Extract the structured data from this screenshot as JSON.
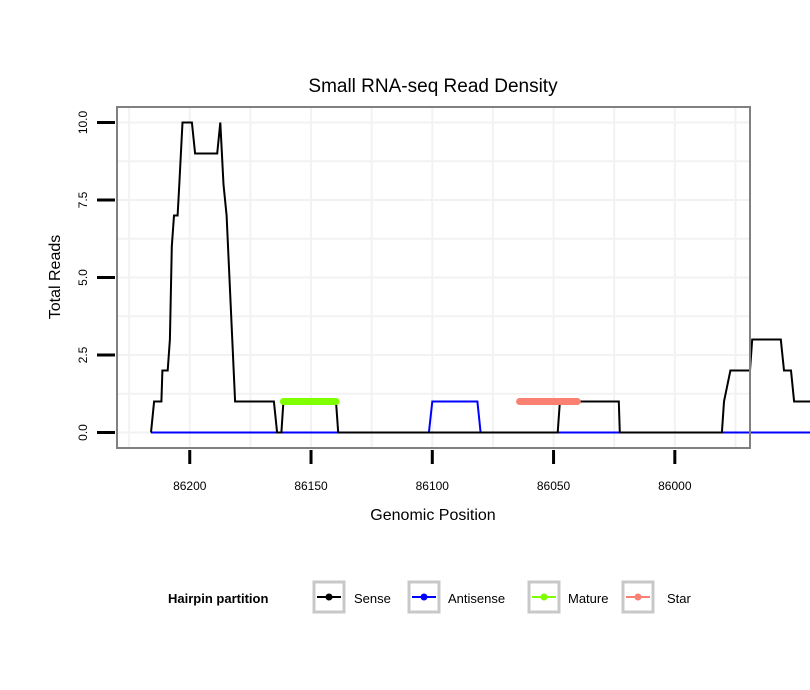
{
  "chart_data": {
    "type": "line",
    "title": "Small RNA-seq Read Density",
    "xlabel": "Genomic Position",
    "ylabel": "Total Reads",
    "x_reversed": true,
    "xlim": [
      86230,
      85969
    ],
    "ylim": [
      -0.5,
      10.5
    ],
    "xticks": [
      86200,
      86150,
      86100,
      86050,
      86000
    ],
    "xtick_labels": [
      "86200",
      "86150",
      "86100",
      "86050",
      "86000"
    ],
    "yticks": [
      0,
      2.5,
      5,
      7.5,
      10
    ],
    "ytick_labels": [
      "0.0",
      "2.5",
      "5.0",
      "7.5",
      "10.0"
    ],
    "grid": true,
    "legend": {
      "title": "Hairpin partition",
      "position": "bottom",
      "entries": [
        {
          "name": "Sense",
          "color": "#000000"
        },
        {
          "name": "Antisense",
          "color": "#0000ff"
        },
        {
          "name": "Mature",
          "color": "#7fff00"
        },
        {
          "name": "Star",
          "color": "#fa8072"
        }
      ]
    },
    "series": [
      {
        "name": "Sense",
        "color": "#000000",
        "points": [
          [
            86216,
            0
          ],
          [
            86214.7,
            1
          ],
          [
            86211.7,
            1
          ],
          [
            86211.3,
            2
          ],
          [
            86209.1,
            2
          ],
          [
            86208.2,
            3
          ],
          [
            86207.4,
            6
          ],
          [
            86206.5,
            7
          ],
          [
            86205,
            7
          ],
          [
            86204.3,
            8
          ],
          [
            86203,
            10
          ],
          [
            86199.1,
            10
          ],
          [
            86197.8,
            9
          ],
          [
            86188.7,
            9
          ],
          [
            86187.4,
            10
          ],
          [
            86186.1,
            8
          ],
          [
            86184.8,
            7
          ],
          [
            86181.3,
            1
          ],
          [
            86165.3,
            1
          ],
          [
            86164,
            0
          ],
          [
            86162.2,
            0
          ],
          [
            86161.4,
            1
          ],
          [
            86139.7,
            1
          ],
          [
            86138.8,
            0
          ],
          [
            86048.3,
            0
          ],
          [
            86047.4,
            1
          ],
          [
            86023.1,
            1
          ],
          [
            86022.7,
            0
          ],
          [
            85980.6,
            0
          ],
          [
            85979.7,
            1
          ],
          [
            85977.1,
            2
          ],
          [
            85969,
            2
          ],
          [
            85968.1,
            3
          ],
          [
            85956.3,
            3
          ],
          [
            85955,
            2
          ],
          [
            85952.1,
            2
          ],
          [
            85950.8,
            1
          ],
          [
            85943,
            1
          ],
          [
            85942.1,
            0
          ],
          [
            85929.5,
            0
          ]
        ]
      },
      {
        "name": "Antisense",
        "color": "#0000ff",
        "points": [
          [
            86216,
            0
          ],
          [
            86101.4,
            0
          ],
          [
            86100,
            1
          ],
          [
            86081.4,
            1
          ],
          [
            86080.1,
            0
          ],
          [
            85942.1,
            0
          ]
        ]
      },
      {
        "name": "Mature",
        "color": "#7fff00",
        "points": [
          [
            86161.4,
            1
          ],
          [
            86139.7,
            1
          ]
        ]
      },
      {
        "name": "Star",
        "color": "#fa8072",
        "points": [
          [
            86064,
            1
          ],
          [
            86040.2,
            1
          ]
        ]
      }
    ]
  }
}
